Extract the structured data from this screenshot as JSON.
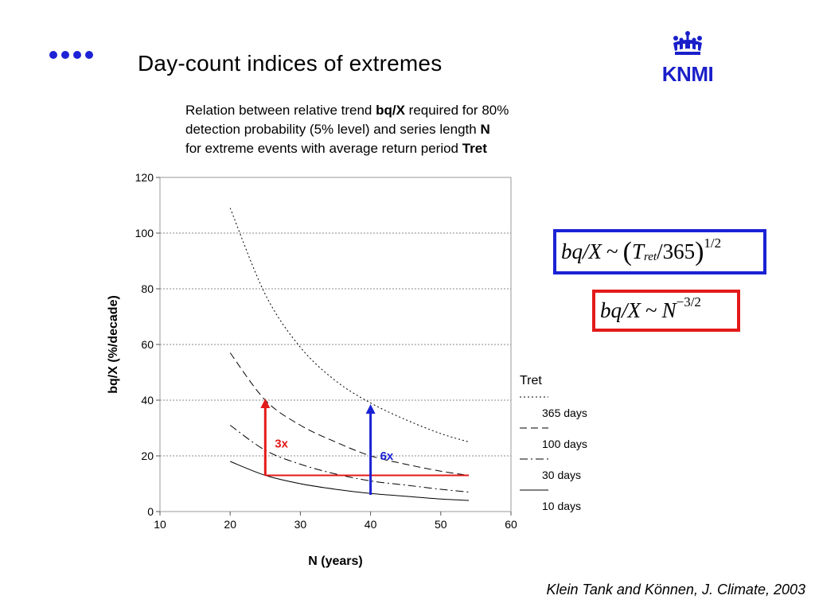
{
  "slide": {
    "title": "Day-count indices of extremes",
    "logo_text": "KNMI",
    "description": {
      "line1_pre": "Relation between relative trend ",
      "line1_bold": "bq/X",
      "line1_post": " required for 80%",
      "line2_pre": "detection probability (5% level) and series length ",
      "line2_bold": "N",
      "line3_pre": "for extreme events with average return period ",
      "line3_bold": "Tret"
    },
    "formula_blue": {
      "lhs": "bq/X",
      "tilde": "~",
      "t": "T",
      "t_sub": "ret",
      "div": "/365",
      "exp": "1/2"
    },
    "formula_red": {
      "lhs": "bq/X",
      "tilde": "~",
      "n": "N",
      "exp": "−3/2"
    },
    "citation": "Klein Tank and Können, J. Climate, 2003",
    "colors": {
      "accent_blue": "#1a22d4",
      "accent_red": "#e31a1a",
      "logo_blue": "#1a1fc9"
    }
  },
  "chart_data": {
    "type": "line",
    "xlabel": "N (years)",
    "ylabel": "bq/X (%/decade)",
    "xlim": [
      10,
      60
    ],
    "ylim": [
      0,
      120
    ],
    "xticks": [
      10,
      20,
      30,
      40,
      50,
      60
    ],
    "yticks": [
      0,
      20,
      40,
      60,
      80,
      100,
      120
    ],
    "grid": "horizontal dotted",
    "legend_title": "Tret",
    "legend_position": "right",
    "series": [
      {
        "name": "365 days",
        "style": "dotted",
        "x": [
          20,
          25,
          30,
          35,
          40,
          45,
          50,
          54
        ],
        "y": [
          109,
          78,
          59,
          47,
          39,
          33,
          28,
          25
        ]
      },
      {
        "name": "100 days",
        "style": "dashed",
        "x": [
          20,
          25,
          30,
          35,
          40,
          45,
          50,
          54
        ],
        "y": [
          57,
          40,
          31,
          25,
          20,
          17,
          14.5,
          13
        ]
      },
      {
        "name": "30 days",
        "style": "dashdot",
        "x": [
          20,
          25,
          30,
          35,
          40,
          45,
          50,
          54
        ],
        "y": [
          31,
          22,
          17,
          13.5,
          11,
          9.5,
          8,
          7
        ]
      },
      {
        "name": "10 days",
        "style": "solid",
        "x": [
          20,
          25,
          30,
          35,
          40,
          45,
          50,
          54
        ],
        "y": [
          18,
          13,
          10,
          8,
          6.5,
          5.5,
          4.5,
          4
        ]
      }
    ],
    "annotations": [
      {
        "label": "3x",
        "x": 25,
        "y_from": 13,
        "y_to": 40,
        "color": "#e31a1a"
      },
      {
        "label": "6x",
        "x": 40,
        "y_from": 6,
        "y_to": 38,
        "color": "#1a22d4"
      }
    ],
    "reference_line": {
      "x_from": 25,
      "x_to": 54,
      "y": 13,
      "color": "#e31a1a"
    }
  }
}
